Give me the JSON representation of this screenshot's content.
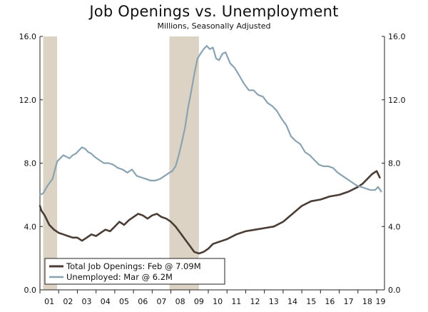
{
  "chart_data": {
    "type": "line",
    "title": "Job Openings vs. Unemployment",
    "subtitle": "Millions, Seasonally Adjusted",
    "xlabel": "",
    "ylabel": "",
    "xlim": [
      2001.0,
      2019.42
    ],
    "ylim": [
      0,
      16
    ],
    "y_ticks": [
      "0.0",
      "4.0",
      "8.0",
      "12.0",
      "16.0"
    ],
    "x_ticks": [
      "01",
      "02",
      "03",
      "04",
      "05",
      "06",
      "07",
      "08",
      "09",
      "10",
      "11",
      "12",
      "13",
      "14",
      "15",
      "16",
      "17",
      "18",
      "19"
    ],
    "recessions": [
      [
        2001.17,
        2001.92
      ],
      [
        2007.92,
        2009.5
      ]
    ],
    "legend_position": "bottom-left",
    "series": [
      {
        "name": "Total Job Openings: Feb @ 7.09M",
        "color": "#4a3d35",
        "x": [
          2001.0,
          2001.08,
          2001.25,
          2001.5,
          2001.75,
          2002.0,
          2002.25,
          2002.5,
          2002.75,
          2003.0,
          2003.25,
          2003.5,
          2003.75,
          2004.0,
          2004.25,
          2004.5,
          2004.75,
          2005.0,
          2005.25,
          2005.5,
          2005.75,
          2006.0,
          2006.25,
          2006.5,
          2006.75,
          2007.0,
          2007.25,
          2007.5,
          2007.75,
          2008.0,
          2008.25,
          2008.5,
          2008.75,
          2009.0,
          2009.25,
          2009.5,
          2009.75,
          2010.0,
          2010.25,
          2010.5,
          2010.75,
          2011.0,
          2011.5,
          2012.0,
          2012.5,
          2013.0,
          2013.5,
          2014.0,
          2014.5,
          2015.0,
          2015.5,
          2016.0,
          2016.5,
          2017.0,
          2017.5,
          2018.0,
          2018.25,
          2018.5,
          2018.75,
          2019.0,
          2019.17
        ],
        "values": [
          5.3,
          5.0,
          4.7,
          4.1,
          3.8,
          3.6,
          3.5,
          3.4,
          3.3,
          3.3,
          3.1,
          3.3,
          3.5,
          3.4,
          3.6,
          3.8,
          3.7,
          4.0,
          4.3,
          4.1,
          4.4,
          4.6,
          4.8,
          4.7,
          4.5,
          4.7,
          4.8,
          4.6,
          4.5,
          4.3,
          4.0,
          3.6,
          3.2,
          2.8,
          2.4,
          2.3,
          2.4,
          2.6,
          2.9,
          3.0,
          3.1,
          3.2,
          3.5,
          3.7,
          3.8,
          3.9,
          4.0,
          4.3,
          4.8,
          5.3,
          5.6,
          5.7,
          5.9,
          6.0,
          6.2,
          6.5,
          6.7,
          7.0,
          7.3,
          7.5,
          7.09
        ]
      },
      {
        "name": "Unemployed: Mar @ 6.2M",
        "color": "#8aa3b2",
        "x": [
          2001.0,
          2001.17,
          2001.42,
          2001.67,
          2001.92,
          2002.08,
          2002.25,
          2002.42,
          2002.58,
          2002.75,
          2002.92,
          2003.08,
          2003.25,
          2003.42,
          2003.58,
          2003.75,
          2003.92,
          2004.17,
          2004.42,
          2004.67,
          2004.92,
          2005.17,
          2005.42,
          2005.67,
          2005.92,
          2006.17,
          2006.42,
          2006.67,
          2006.92,
          2007.17,
          2007.42,
          2007.67,
          2007.92,
          2008.08,
          2008.25,
          2008.42,
          2008.58,
          2008.75,
          2008.92,
          2009.08,
          2009.25,
          2009.42,
          2009.58,
          2009.75,
          2009.92,
          2010.08,
          2010.25,
          2010.42,
          2010.58,
          2010.75,
          2010.92,
          2011.17,
          2011.42,
          2011.67,
          2011.92,
          2012.17,
          2012.42,
          2012.67,
          2012.92,
          2013.17,
          2013.42,
          2013.67,
          2013.92,
          2014.17,
          2014.42,
          2014.67,
          2014.92,
          2015.17,
          2015.42,
          2015.67,
          2015.92,
          2016.17,
          2016.42,
          2016.67,
          2016.92,
          2017.17,
          2017.42,
          2017.67,
          2017.92,
          2018.17,
          2018.42,
          2018.67,
          2018.92,
          2019.08,
          2019.25
        ],
        "values": [
          6.0,
          6.1,
          6.6,
          7.0,
          8.1,
          8.3,
          8.5,
          8.4,
          8.3,
          8.5,
          8.6,
          8.8,
          9.0,
          8.9,
          8.7,
          8.6,
          8.4,
          8.2,
          8.0,
          8.0,
          7.9,
          7.7,
          7.6,
          7.4,
          7.6,
          7.2,
          7.1,
          7.0,
          6.9,
          6.9,
          7.0,
          7.2,
          7.4,
          7.5,
          7.8,
          8.5,
          9.3,
          10.2,
          11.5,
          12.5,
          13.6,
          14.6,
          14.9,
          15.2,
          15.4,
          15.2,
          15.3,
          14.6,
          14.5,
          14.9,
          15.0,
          14.3,
          14.0,
          13.5,
          13.0,
          12.6,
          12.6,
          12.3,
          12.2,
          11.8,
          11.6,
          11.3,
          10.8,
          10.4,
          9.7,
          9.4,
          9.2,
          8.7,
          8.5,
          8.2,
          7.9,
          7.8,
          7.8,
          7.7,
          7.4,
          7.2,
          7.0,
          6.8,
          6.6,
          6.5,
          6.4,
          6.3,
          6.3,
          6.5,
          6.2
        ]
      }
    ]
  }
}
